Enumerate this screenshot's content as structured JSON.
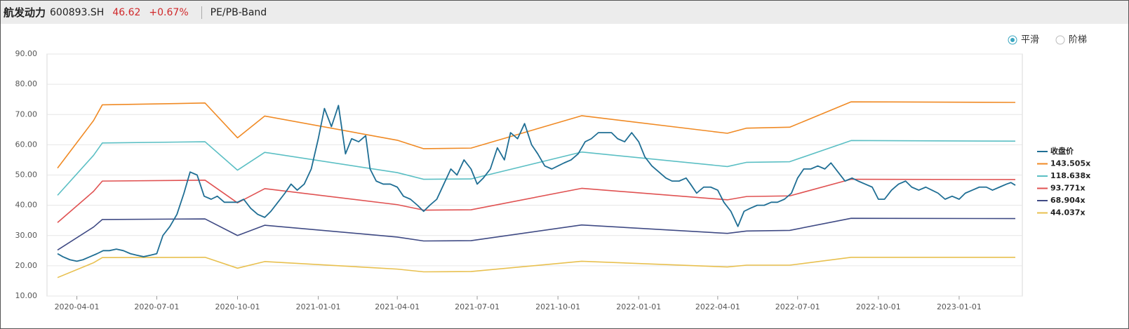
{
  "header": {
    "name": "航发动力",
    "code": "600893.SH",
    "price": "46.62",
    "change": "+0.67%",
    "tab": "PE/PB-Band"
  },
  "toggle": {
    "options": [
      {
        "label": "平滑",
        "selected": true
      },
      {
        "label": "阶梯",
        "selected": false
      }
    ]
  },
  "chart_data": {
    "type": "line",
    "xlim": [
      "2020-02-27",
      "2023-03-14"
    ],
    "xticks": [
      "2020-04-01",
      "2020-07-01",
      "2020-10-01",
      "2021-01-01",
      "2021-04-01",
      "2021-07-01",
      "2021-10-01",
      "2022-01-01",
      "2022-04-01",
      "2022-07-01",
      "2022-10-01",
      "2023-01-01"
    ],
    "ylim": [
      10,
      90
    ],
    "yticks": [
      {
        "value": 10,
        "label": "10.00"
      },
      {
        "value": 20,
        "label": "20.00"
      },
      {
        "value": 30,
        "label": "30.00"
      },
      {
        "value": 40,
        "label": "40.00"
      },
      {
        "value": 50,
        "label": "50.00"
      },
      {
        "value": 60,
        "label": "60.00"
      },
      {
        "value": 70,
        "label": "70.00"
      },
      {
        "value": 80,
        "label": "80.00"
      },
      {
        "value": 90,
        "label": "90.00"
      }
    ],
    "grid": true,
    "legend": "right",
    "series": [
      {
        "name": "收盘价",
        "color": "#1f6e94",
        "x": [
          "2020-03-10",
          "2020-03-16",
          "2020-03-24",
          "2020-04-01",
          "2020-04-08",
          "2020-04-16",
          "2020-04-24",
          "2020-05-01",
          "2020-05-08",
          "2020-05-16",
          "2020-05-24",
          "2020-06-01",
          "2020-06-08",
          "2020-06-16",
          "2020-06-24",
          "2020-07-01",
          "2020-07-08",
          "2020-07-16",
          "2020-07-24",
          "2020-08-01",
          "2020-08-08",
          "2020-08-16",
          "2020-08-24",
          "2020-09-01",
          "2020-09-08",
          "2020-09-16",
          "2020-09-24",
          "2020-10-01",
          "2020-10-08",
          "2020-10-16",
          "2020-10-24",
          "2020-11-01",
          "2020-11-08",
          "2020-11-16",
          "2020-11-24",
          "2020-12-01",
          "2020-12-08",
          "2020-12-16",
          "2020-12-24",
          "2021-01-01",
          "2021-01-08",
          "2021-01-16",
          "2021-01-24",
          "2021-02-01",
          "2021-02-08",
          "2021-02-16",
          "2021-02-24",
          "2021-03-01",
          "2021-03-08",
          "2021-03-16",
          "2021-03-24",
          "2021-04-01",
          "2021-04-08",
          "2021-04-16",
          "2021-04-24",
          "2021-05-01",
          "2021-05-08",
          "2021-05-16",
          "2021-05-24",
          "2021-06-01",
          "2021-06-08",
          "2021-06-16",
          "2021-06-24",
          "2021-07-01",
          "2021-07-08",
          "2021-07-16",
          "2021-07-24",
          "2021-08-01",
          "2021-08-08",
          "2021-08-16",
          "2021-08-24",
          "2021-09-01",
          "2021-09-08",
          "2021-09-16",
          "2021-09-24",
          "2021-10-01",
          "2021-10-08",
          "2021-10-16",
          "2021-10-24",
          "2021-11-01",
          "2021-11-08",
          "2021-11-16",
          "2021-11-24",
          "2021-12-01",
          "2021-12-08",
          "2021-12-16",
          "2021-12-24",
          "2022-01-01",
          "2022-01-08",
          "2022-01-16",
          "2022-01-24",
          "2022-02-01",
          "2022-02-08",
          "2022-02-16",
          "2022-02-24",
          "2022-03-01",
          "2022-03-08",
          "2022-03-16",
          "2022-03-24",
          "2022-04-01",
          "2022-04-08",
          "2022-04-16",
          "2022-04-24",
          "2022-05-01",
          "2022-05-08",
          "2022-05-16",
          "2022-05-24",
          "2022-06-01",
          "2022-06-08",
          "2022-06-16",
          "2022-06-24",
          "2022-07-01",
          "2022-07-08",
          "2022-07-16",
          "2022-07-24",
          "2022-08-01",
          "2022-08-08",
          "2022-08-16",
          "2022-08-24",
          "2022-09-01",
          "2022-09-08",
          "2022-09-16",
          "2022-09-24",
          "2022-10-01",
          "2022-10-08",
          "2022-10-16",
          "2022-10-24",
          "2022-11-01",
          "2022-11-08",
          "2022-11-16",
          "2022-11-24",
          "2022-12-01",
          "2022-12-08",
          "2022-12-16",
          "2022-12-24",
          "2023-01-01",
          "2023-01-08",
          "2023-01-16",
          "2023-01-24",
          "2023-02-01",
          "2023-02-08",
          "2023-02-16",
          "2023-02-24",
          "2023-03-01",
          "2023-03-06"
        ],
        "values": [
          24,
          23,
          22,
          21.5,
          22,
          23,
          24,
          25,
          25,
          25.5,
          25,
          24,
          23.5,
          23,
          23.5,
          24,
          30,
          33,
          37,
          44,
          51,
          50,
          43,
          42,
          43,
          41,
          41,
          41,
          42,
          39,
          37,
          36,
          38,
          41,
          44,
          47,
          45,
          47,
          52,
          62,
          72,
          66,
          73,
          57,
          62,
          61,
          63,
          52,
          48,
          47,
          47,
          46,
          43,
          42,
          40,
          38,
          40,
          42,
          47,
          52,
          50,
          55,
          52,
          47,
          49,
          52,
          59,
          55,
          64,
          62,
          67,
          60,
          57,
          53,
          52,
          53,
          54,
          55,
          57,
          61,
          62,
          64,
          64,
          64,
          62,
          61,
          64,
          61,
          56,
          53,
          51,
          49,
          48,
          48,
          49,
          47,
          44,
          46,
          46,
          45,
          41,
          38,
          33,
          38,
          39,
          40,
          40,
          41,
          41,
          42,
          44,
          49,
          52,
          52,
          53,
          52,
          54,
          51,
          48,
          49,
          48,
          47,
          46,
          42,
          42,
          45,
          47,
          48,
          46,
          45,
          46,
          45,
          44,
          42,
          43,
          42,
          44,
          45,
          46,
          46,
          45,
          46,
          47,
          47.5,
          46.62
        ]
      },
      {
        "name": "143.505x",
        "color": "#f08a24",
        "x": [
          "2020-03-10",
          "2020-04-20",
          "2020-04-30",
          "2020-08-25",
          "2020-10-01",
          "2020-11-01",
          "2021-04-01",
          "2021-05-01",
          "2021-06-24",
          "2021-10-28",
          "2022-04-12",
          "2022-05-04",
          "2022-06-22",
          "2022-08-31",
          "2023-03-06"
        ],
        "values": [
          52.3,
          68,
          73.2,
          73.8,
          62.3,
          69.5,
          61.5,
          58.7,
          58.9,
          69.6,
          63.8,
          65.5,
          65.8,
          74.2,
          74
        ]
      },
      {
        "name": "118.638x",
        "color": "#5bbfc4",
        "x": [
          "2020-03-10",
          "2020-04-20",
          "2020-04-30",
          "2020-08-25",
          "2020-10-01",
          "2020-11-01",
          "2021-04-01",
          "2021-05-01",
          "2021-06-24",
          "2021-10-28",
          "2022-04-12",
          "2022-05-04",
          "2022-06-22",
          "2022-08-31",
          "2023-03-06"
        ],
        "values": [
          43.3,
          56.5,
          60.6,
          61.0,
          51.6,
          57.5,
          50.8,
          48.6,
          48.7,
          57.6,
          52.8,
          54.2,
          54.4,
          61.4,
          61.2
        ]
      },
      {
        "name": "93.771x",
        "color": "#e05252",
        "x": [
          "2020-03-10",
          "2020-04-20",
          "2020-04-30",
          "2020-08-25",
          "2020-10-01",
          "2020-11-01",
          "2021-04-01",
          "2021-05-01",
          "2021-06-24",
          "2021-10-28",
          "2022-04-12",
          "2022-05-04",
          "2022-06-22",
          "2022-08-31",
          "2023-03-06"
        ],
        "values": [
          34.3,
          44.6,
          48.0,
          48.3,
          40.8,
          45.5,
          40.2,
          38.4,
          38.5,
          45.6,
          41.8,
          42.9,
          43.1,
          48.6,
          48.5
        ]
      },
      {
        "name": "68.904x",
        "color": "#3f4a84",
        "x": [
          "2020-03-10",
          "2020-04-20",
          "2020-04-30",
          "2020-08-25",
          "2020-10-01",
          "2020-11-01",
          "2021-04-01",
          "2021-05-01",
          "2021-06-24",
          "2021-10-28",
          "2022-04-12",
          "2022-05-04",
          "2022-06-22",
          "2022-08-31",
          "2023-03-06"
        ],
        "values": [
          25.2,
          32.8,
          35.3,
          35.5,
          30.0,
          33.4,
          29.5,
          28.2,
          28.3,
          33.5,
          30.7,
          31.5,
          31.7,
          35.7,
          35.6
        ]
      },
      {
        "name": "44.037x",
        "color": "#e8c04f",
        "x": [
          "2020-03-10",
          "2020-04-20",
          "2020-04-30",
          "2020-08-25",
          "2020-10-01",
          "2020-11-01",
          "2021-04-01",
          "2021-05-01",
          "2021-06-24",
          "2021-10-28",
          "2022-04-12",
          "2022-05-04",
          "2022-06-22",
          "2022-08-31",
          "2023-03-06"
        ],
        "values": [
          16.1,
          21.0,
          22.7,
          22.8,
          19.2,
          21.4,
          18.9,
          18.0,
          18.1,
          21.5,
          19.6,
          20.2,
          20.2,
          22.8,
          22.8
        ]
      }
    ]
  }
}
